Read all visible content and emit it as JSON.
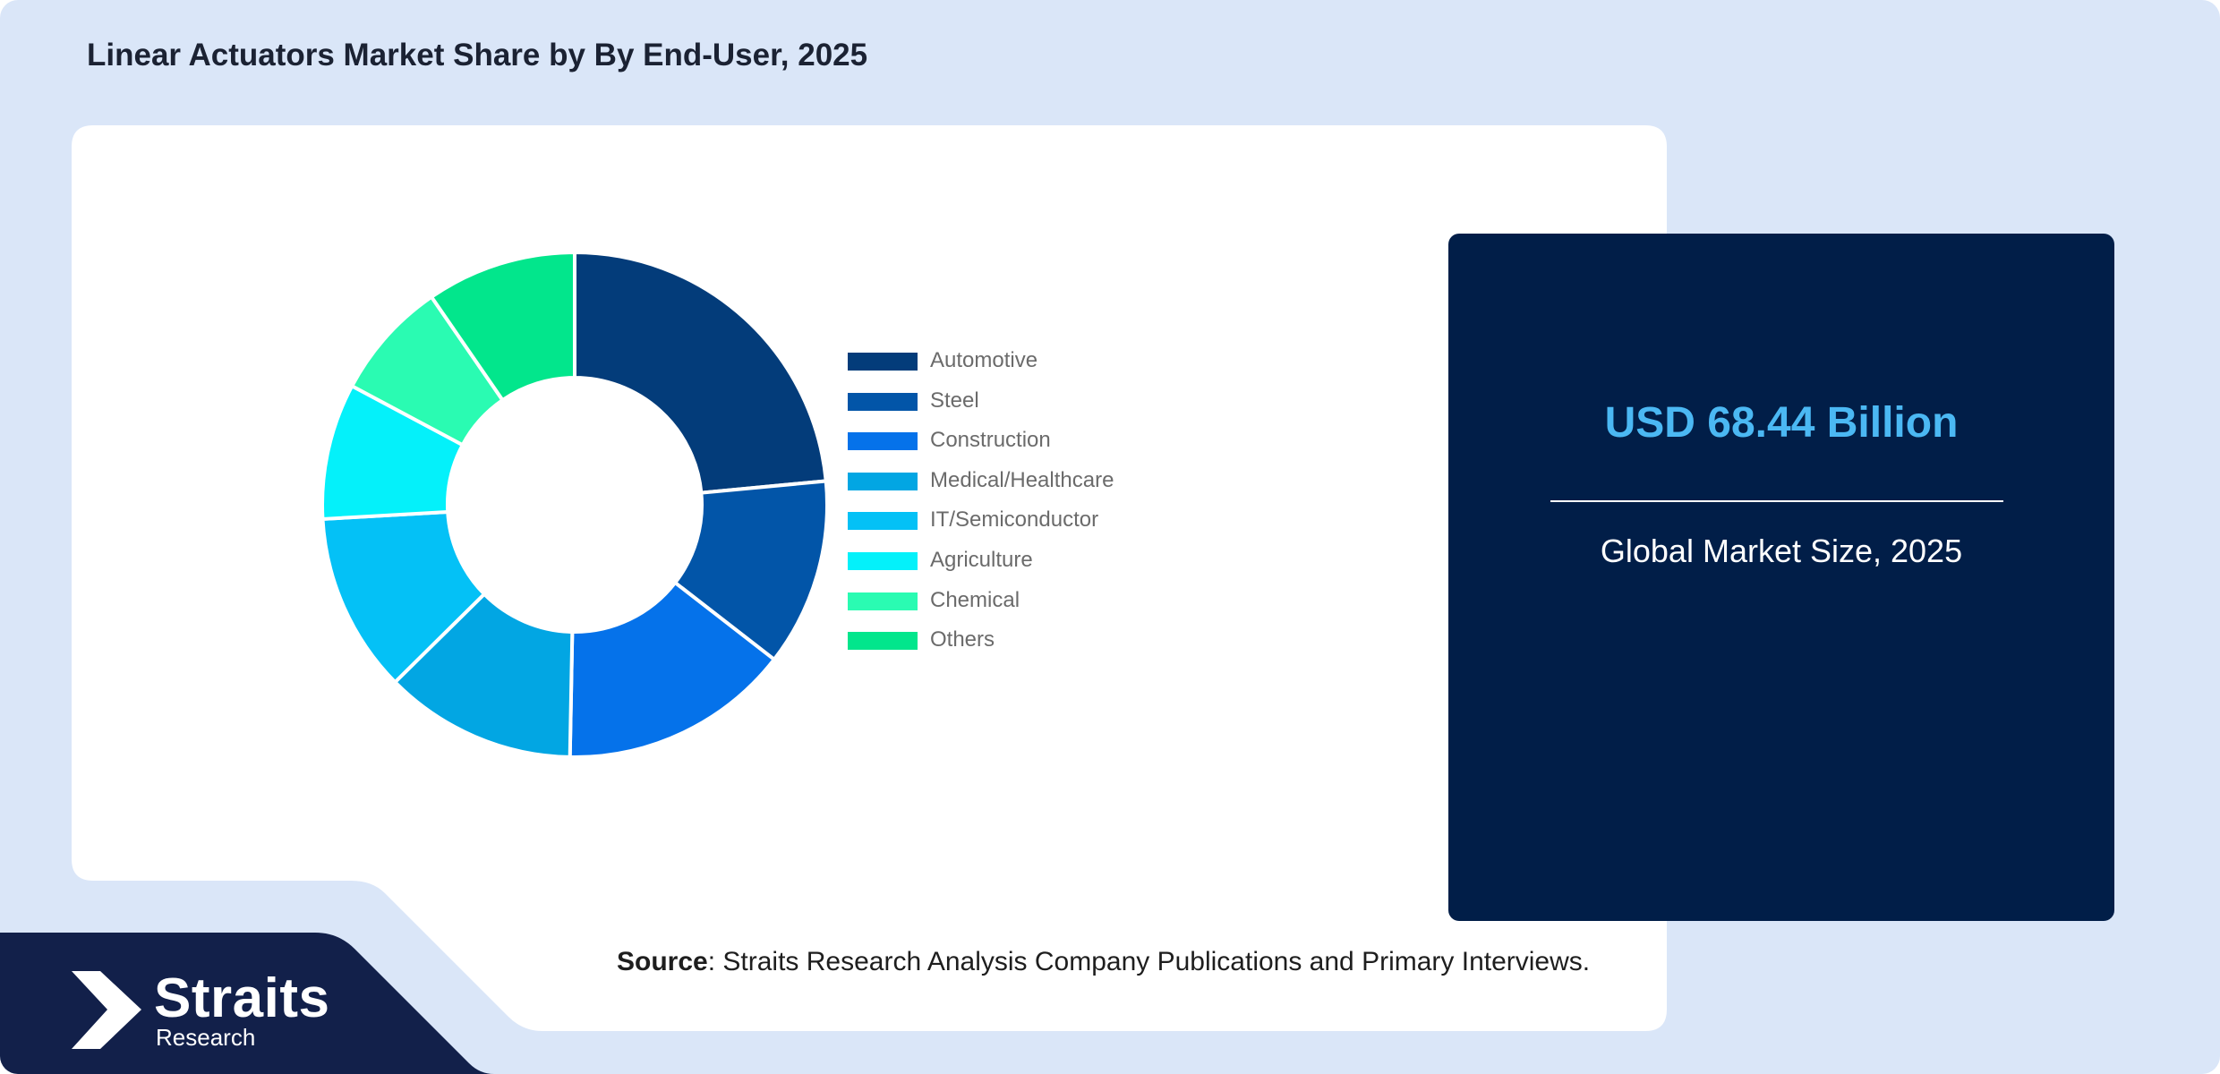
{
  "page": {
    "title": "Linear Actuators Market Share by By End-User, 2025"
  },
  "market": {
    "value": "USD 68.44 Billion",
    "caption": "Global Market Size, 2025"
  },
  "source": {
    "label": "Source",
    "text": ": Straits Research Analysis Company Publications and Primary Interviews."
  },
  "logo": {
    "wordmark": "Straits",
    "subtitle": "Research"
  },
  "colors": {
    "background": "#dae6f8",
    "card": "#ffffff",
    "panel": "#011e48",
    "market_value": "#4bb8f3",
    "footer_band": "#12204a"
  },
  "chart_data": {
    "type": "pie",
    "donut": true,
    "legend_position": "right",
    "categories": [
      "Automotive",
      "Steel",
      "Construction",
      "Medical/Healthcare",
      "IT/Semiconductor",
      "Agriculture",
      "Chemical",
      "Others"
    ],
    "values": [
      23.5,
      12.0,
      14.8,
      12.3,
      11.5,
      8.7,
      7.6,
      9.6
    ],
    "colors": [
      "#033c7a",
      "#0255a8",
      "#0572ea",
      "#02a6e3",
      "#04c1f6",
      "#04f1fa",
      "#2afbb2",
      "#02e68c"
    ]
  }
}
